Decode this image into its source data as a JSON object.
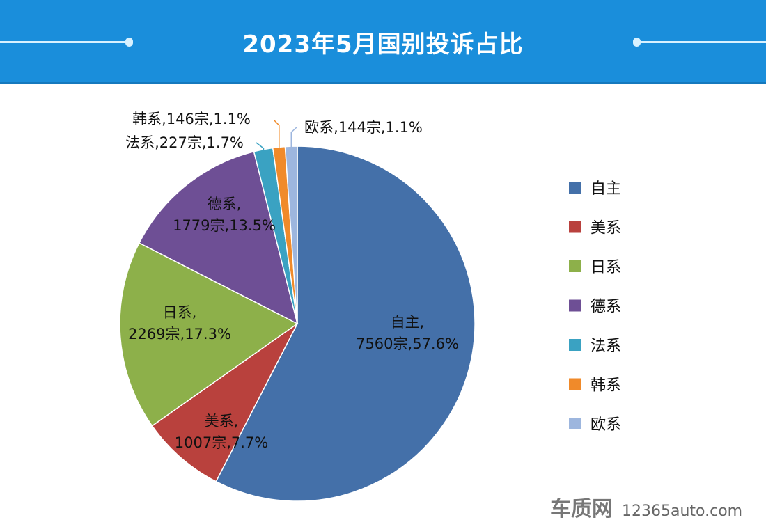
{
  "chart_data": {
    "type": "pie",
    "title": "2023年5月国别投诉占比",
    "start_angle": "top",
    "direction": "clockwise",
    "legend": "right",
    "slices": [
      {
        "name": "自主",
        "value": 7560,
        "percent": 57.6,
        "color": "#4470a9"
      },
      {
        "name": "美系",
        "value": 1007,
        "percent": 7.7,
        "color": "#b9413d"
      },
      {
        "name": "日系",
        "value": 2269,
        "percent": 17.3,
        "color": "#8db04a"
      },
      {
        "name": "德系",
        "value": 1779,
        "percent": 13.5,
        "color": "#6e4f95"
      },
      {
        "name": "法系",
        "value": 227,
        "percent": 1.7,
        "color": "#3aa2c2"
      },
      {
        "name": "韩系",
        "value": 146,
        "percent": 1.1,
        "color": "#f08a2a"
      },
      {
        "name": "欧系",
        "value": 144,
        "percent": 1.1,
        "color": "#9db6de"
      }
    ],
    "data_labels": [
      {
        "line1": "自主,",
        "line2": "7560宗,57.6%"
      },
      {
        "line1": "美系,",
        "line2": "1007宗,7.7%"
      },
      {
        "line1": "日系,",
        "line2": "2269宗,17.3%"
      },
      {
        "line1": "德系,",
        "line2": "1779宗,13.5%"
      },
      {
        "line1": "法系,227宗,1.7%",
        "line2": ""
      },
      {
        "line1": "韩系,146宗,1.1%",
        "line2": ""
      },
      {
        "line1": "欧系,144宗,1.1%",
        "line2": ""
      }
    ],
    "unit": "宗"
  },
  "watermark": {
    "logo": "车质网",
    "site": "12365auto.com"
  }
}
